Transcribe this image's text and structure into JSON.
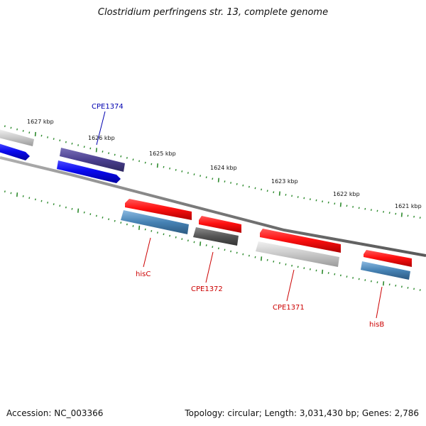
{
  "title": "Clostridium perfringens str. 13, complete genome",
  "footer": {
    "accession": "Accession: NC_003366",
    "summary": "Topology: circular; Length: 3,031,430 bp; Genes: 2,786"
  },
  "scale_labels": [
    "1627 kbp",
    "1626 kbp",
    "1625 kbp",
    "1624 kbp",
    "1623 kbp",
    "1622 kbp",
    "1621 kbp"
  ],
  "gene_labels": [
    {
      "name": "CPE1374",
      "strand": "forward",
      "color": "#0000b0"
    },
    {
      "name": "hisC",
      "strand": "reverse",
      "color": "#cc0000"
    },
    {
      "name": "CPE1372",
      "strand": "reverse",
      "color": "#cc0000"
    },
    {
      "name": "CPE1371",
      "strand": "reverse",
      "color": "#cc0000"
    },
    {
      "name": "hisB",
      "strand": "reverse",
      "color": "#cc0000"
    }
  ],
  "colors": {
    "backbone": "#808080",
    "tick": "#2e8b2e",
    "forward_cds": "#1010ee",
    "forward_hit": "#4b4090",
    "reverse_cds": "#ee1111",
    "hit_steel": "#4682b4",
    "hit_gray": "#555555",
    "hit_light": "#c8c8c8"
  }
}
